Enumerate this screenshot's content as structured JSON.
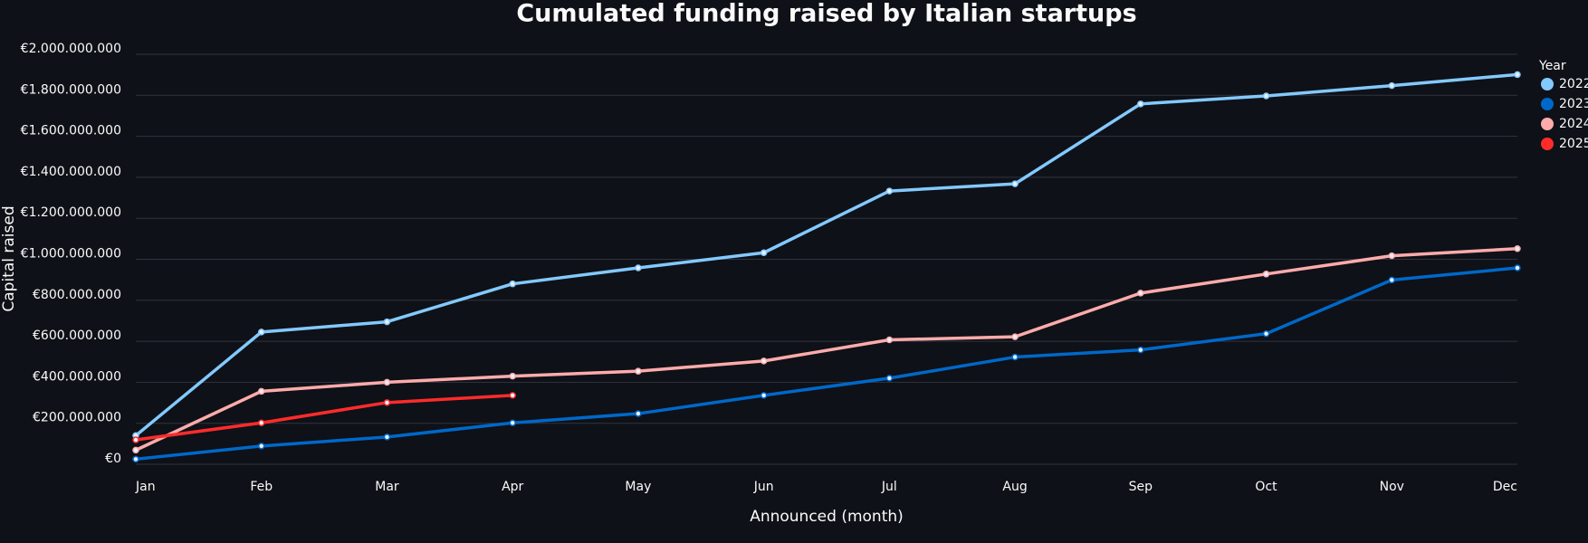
{
  "chart_data": {
    "type": "line",
    "title": "Cumulated funding raised by Italian startups",
    "x_label": "Announced (month)",
    "y_label": "Capital raised",
    "legend_title": "Year",
    "legend": "right",
    "grid": true,
    "categories": [
      "Jan",
      "Feb",
      "Mar",
      "Apr",
      "May",
      "Jun",
      "Jul",
      "Aug",
      "Sep",
      "Oct",
      "Nov",
      "Dec"
    ],
    "ylim": [
      0,
      2000000000
    ],
    "yticks": [
      {
        "value": 0,
        "label": "€0"
      },
      {
        "value": 200000000,
        "label": "€200.000.000"
      },
      {
        "value": 400000000,
        "label": "€400.000.000"
      },
      {
        "value": 600000000,
        "label": "€600.000.000"
      },
      {
        "value": 800000000,
        "label": "€800.000.000"
      },
      {
        "value": 1000000000,
        "label": "€1.000.000.000"
      },
      {
        "value": 1200000000,
        "label": "€1.200.000.000"
      },
      {
        "value": 1400000000,
        "label": "€1.400.000.000"
      },
      {
        "value": 1600000000,
        "label": "€1.600.000.000"
      },
      {
        "value": 1800000000,
        "label": "€1.800.000.000"
      },
      {
        "value": 2000000000,
        "label": "€2.000.000.000"
      }
    ],
    "series": [
      {
        "name": "2022",
        "color": "#83c9ff",
        "values": [
          140000000,
          645000000,
          695000000,
          880000000,
          958000000,
          1032000000,
          1333000000,
          1368000000,
          1758000000,
          1797000000,
          1847000000,
          1901000000
        ]
      },
      {
        "name": "2023",
        "color": "#0068c9",
        "values": [
          25000000,
          89000000,
          133000000,
          202000000,
          247000000,
          336000000,
          420000000,
          523000000,
          558000000,
          637000000,
          899000000,
          958000000
        ]
      },
      {
        "name": "2024",
        "color": "#ffabab",
        "values": [
          69000000,
          356000000,
          400000000,
          430000000,
          454000000,
          504000000,
          607000000,
          622000000,
          835000000,
          928000000,
          1017000000,
          1052000000
        ]
      },
      {
        "name": "2025",
        "color": "#ff2b2b",
        "values": [
          119000000,
          202000000,
          301000000,
          336000000,
          null,
          null,
          null,
          null,
          null,
          null,
          null,
          null
        ]
      }
    ]
  }
}
